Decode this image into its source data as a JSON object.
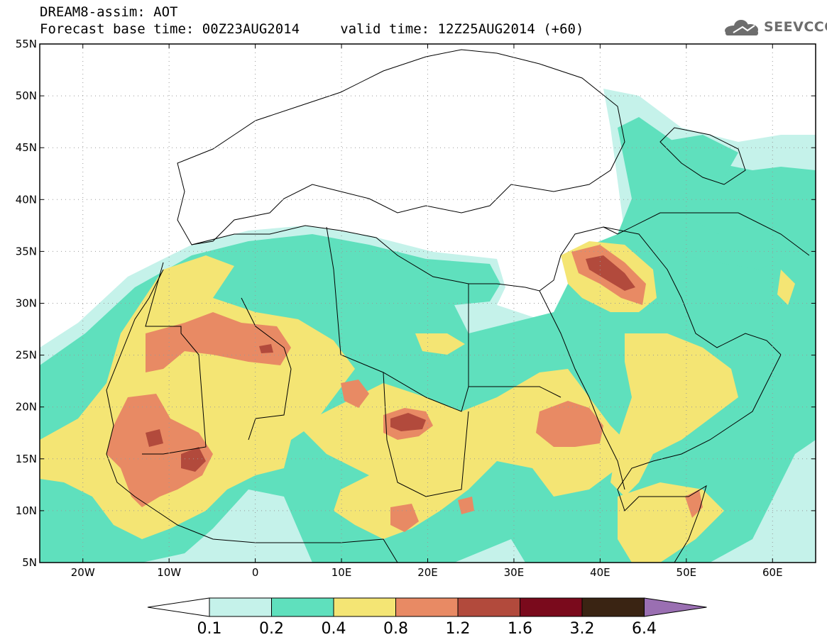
{
  "title": {
    "line1": "DREAM8-assim: AOT",
    "line2": "Forecast base time: 00Z23AUG2014     valid time: 12Z25AUG2014 (+60)"
  },
  "logo": {
    "text": "SEEVCCC",
    "icon": "cloud-icon",
    "color": "#6d6d6d"
  },
  "map": {
    "lat_range": [
      5,
      55
    ],
    "lon_range": [
      -25,
      65
    ],
    "lat_ticks": [
      "55N",
      "50N",
      "45N",
      "40N",
      "35N",
      "30N",
      "25N",
      "20N",
      "15N",
      "10N",
      "5N"
    ],
    "lon_ticks": [
      "20W",
      "10W",
      "0",
      "10E",
      "20E",
      "30E",
      "40E",
      "50E",
      "60E"
    ],
    "grid": "dotted"
  },
  "colorbar": {
    "labels": [
      "0.1",
      "0.2",
      "0.4",
      "0.8",
      "1.2",
      "1.6",
      "3.2",
      "6.4"
    ],
    "colors": [
      "#ffffff",
      "#c5f2ea",
      "#5fe0bd",
      "#f4e574",
      "#e88a64",
      "#b24a3c",
      "#7a0a1c",
      "#3a2413",
      "#9a6fb2"
    ]
  }
}
